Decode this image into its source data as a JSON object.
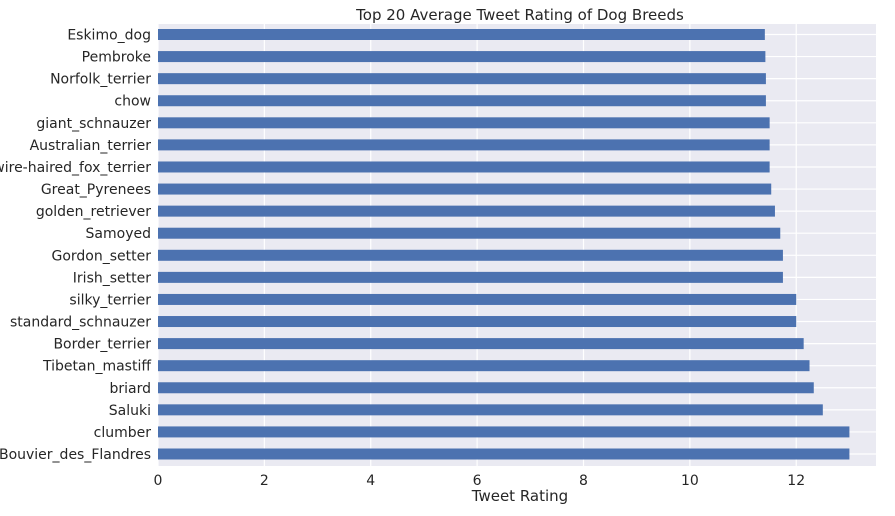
{
  "chart_data": {
    "type": "bar",
    "orientation": "horizontal",
    "title": "Top 20 Average Tweet Rating of Dog Breeds",
    "xlabel": "Tweet Rating",
    "ylabel": "",
    "xlim": [
      0,
      13.5
    ],
    "xticks": [
      0,
      2,
      4,
      6,
      8,
      10,
      12
    ],
    "grid": true,
    "colors": {
      "bar": "#4c72b0",
      "background": "#eaeaf2",
      "grid": "#ffffff",
      "text": "#262626"
    },
    "categories": [
      "Eskimo_dog",
      "Pembroke",
      "Norfolk_terrier",
      "chow",
      "giant_schnauzer",
      "Australian_terrier",
      "wire-haired_fox_terrier",
      "Great_Pyrenees",
      "golden_retriever",
      "Samoyed",
      "Gordon_setter",
      "Irish_setter",
      "silky_terrier",
      "standard_schnauzer",
      "Border_terrier",
      "Tibetan_mastiff",
      "briard",
      "Saluki",
      "clumber",
      "Bouvier_des_Flandres"
    ],
    "values": [
      11.41,
      11.42,
      11.43,
      11.43,
      11.5,
      11.5,
      11.5,
      11.53,
      11.6,
      11.7,
      11.75,
      11.75,
      12.0,
      12.0,
      12.14,
      12.25,
      12.33,
      12.5,
      13.0,
      13.0
    ]
  }
}
